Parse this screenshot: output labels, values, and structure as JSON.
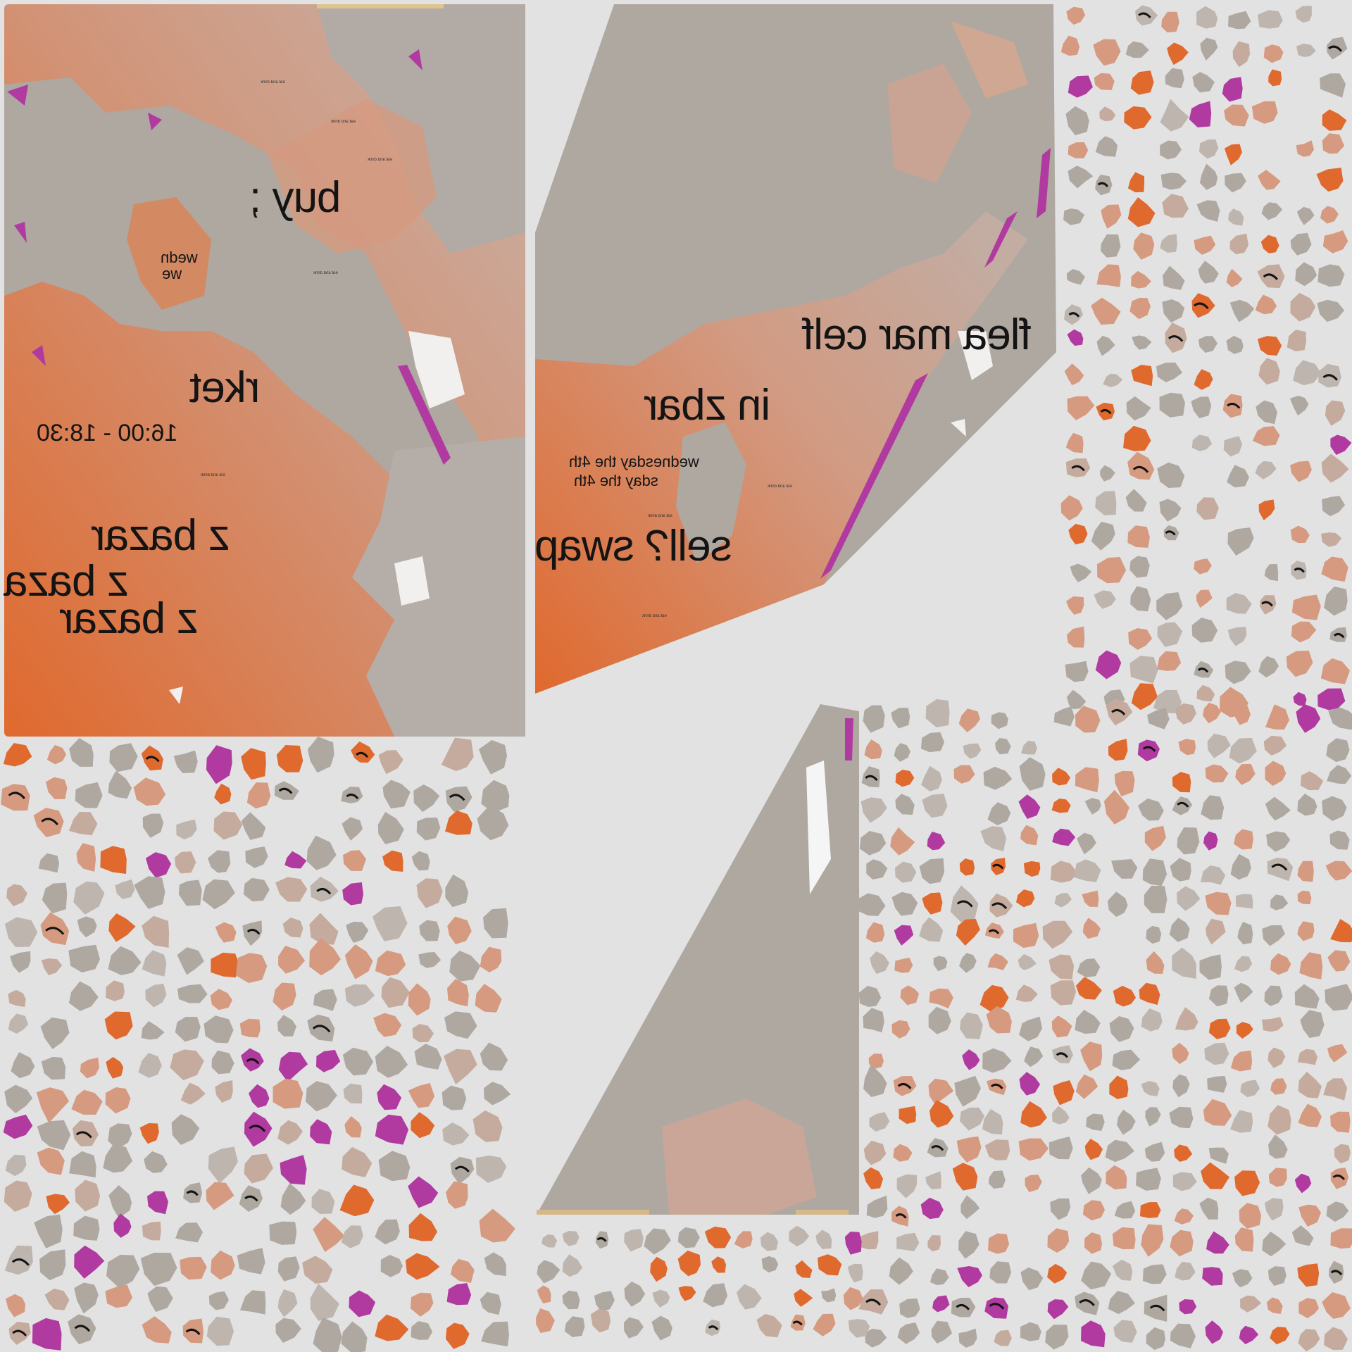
{
  "canvas": {
    "background": "#e2e2e2"
  },
  "palette": {
    "orange": "#e0692e",
    "peach": "#d59a7f",
    "tan": "#c5ab9d",
    "gray": "#aea8a1",
    "light_gray": "#bdb5ae",
    "magenta": "#b13aa1",
    "ink": "#141414"
  },
  "panel_a": {
    "text_buy": "buy ;",
    "text_wedn_1": "wedn",
    "text_wedn_2": "we",
    "text_market": "rket",
    "text_time": "16:00 - 18:30",
    "text_bazar_1": "z bazar",
    "text_bazar_2": "z baza",
    "text_bazar_3": "z bazar",
    "tiny_label": "eat and drink"
  },
  "panel_b": {
    "text_flea": "flea mar celf",
    "text_in_zbar": "in zbar",
    "text_wed_1": "wednesday the 4th",
    "text_wed_2": "sday the 4th",
    "text_swap": "sell? swap",
    "tiny_label": "eat and drink"
  }
}
